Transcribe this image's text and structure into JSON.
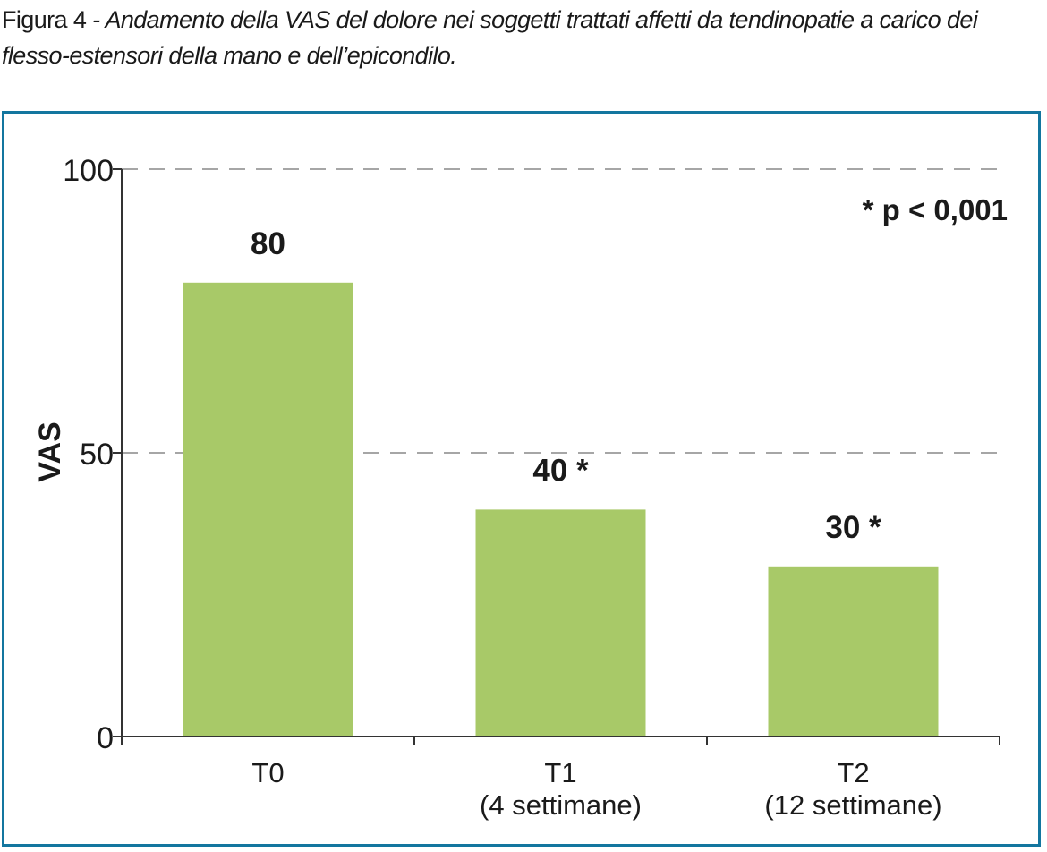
{
  "caption": {
    "label": "Figura 4",
    "text": " - Andamento della VAS del dolore nei soggetti trattati affetti da tendinopatie a carico dei flesso-estensori della mano e dell’epicondilo."
  },
  "colors": {
    "bar": "#a8c968",
    "frame": "#13769f",
    "axis": "#333333",
    "grid": "#888888"
  },
  "chart_data": {
    "type": "bar",
    "categories": [
      "T0",
      "T1",
      "T2"
    ],
    "category_sublabels": [
      "",
      "(4 settimane)",
      "(12 settimane)"
    ],
    "values": [
      80,
      40,
      30
    ],
    "value_labels": [
      "80",
      "40 *",
      "30 *"
    ],
    "ylabel": "VAS",
    "ylim": [
      0,
      100
    ],
    "yticks": [
      0,
      50,
      100
    ],
    "gridlines": [
      50,
      100
    ],
    "grid": "dashed",
    "annotation": "* p < 0,001"
  }
}
